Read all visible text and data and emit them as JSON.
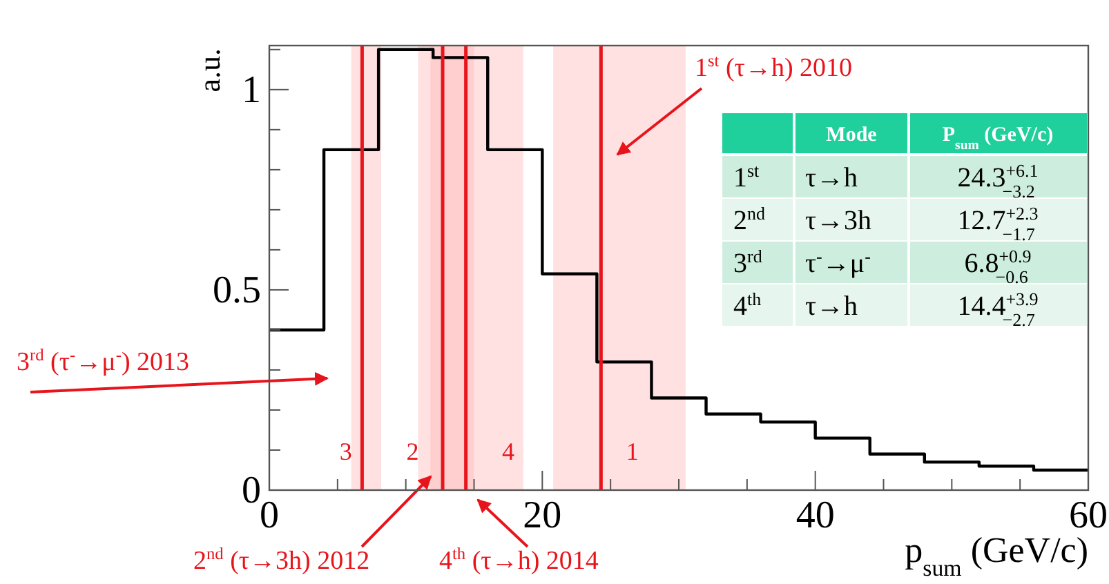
{
  "chart_data": {
    "type": "histogram",
    "xlabel": "p$_{sum}$ (GeV/c)",
    "ylabel": "a.u.",
    "color": "#000000",
    "bins": [
      0,
      4,
      8,
      12,
      16,
      20,
      24,
      28,
      32,
      36,
      40,
      44,
      48,
      52,
      56,
      60
    ],
    "values": [
      0.4,
      0.85,
      1.1,
      1.08,
      0.85,
      0.54,
      0.32,
      0.23,
      0.19,
      0.17,
      0.13,
      0.09,
      0.07,
      0.06,
      0.05
    ],
    "xlim": [
      0,
      60
    ],
    "ylim": [
      0,
      1.11
    ],
    "xticks": [
      0,
      {
        "value": 5,
        "label": null
      },
      {
        "value": 10,
        "label": null
      },
      {
        "value": 15,
        "label": null
      },
      20,
      {
        "value": 25,
        "label": null
      },
      {
        "value": 30,
        "label": null
      },
      {
        "value": 35,
        "label": null
      },
      40,
      {
        "value": 45,
        "label": null
      },
      {
        "value": 50,
        "label": null
      },
      {
        "value": 55,
        "label": null
      },
      60
    ],
    "yticks": [
      0,
      {
        "value": 0.1,
        "label": null
      },
      {
        "value": 0.2,
        "label": null
      },
      {
        "value": 0.3,
        "label": null
      },
      {
        "value": 0.4,
        "label": null
      },
      0.5,
      {
        "value": 0.6,
        "label": null
      },
      {
        "value": 0.7,
        "label": null
      },
      {
        "value": 0.8,
        "label": null
      },
      {
        "value": 0.9,
        "label": null
      },
      1,
      {
        "value": 1.1,
        "label": null
      }
    ],
    "ref_lines": [
      {
        "axis": "x",
        "value": 24.3,
        "label": "1$^{st}$ (τ→h) 2010",
        "color": "#e8141c"
      },
      {
        "axis": "x",
        "value": 12.7,
        "label": "2$^{nd}$ (τ→3h) 2012",
        "color": "#e8141c"
      },
      {
        "axis": "x",
        "value": 6.8,
        "label": "3$^{rd}$ (τ$^{-}$→μ$^{-}$) 2013",
        "color": "#e8141c"
      },
      {
        "axis": "x",
        "value": 14.4,
        "label": "4$^{th}$ (τ→h) 2014",
        "color": "#e8141c"
      }
    ],
    "bands": [
      {
        "axis": "x",
        "from": 20.8,
        "to": 30.5,
        "label": "1",
        "color": "#ffb3b3"
      },
      {
        "axis": "x",
        "from": 10.9,
        "to": 15.0,
        "label": "2",
        "color": "#ffb3b3"
      },
      {
        "axis": "x",
        "from": 6.0,
        "to": 8.2,
        "label": "3",
        "color": "#ffb3b3"
      },
      {
        "axis": "x",
        "from": 11.8,
        "to": 18.6,
        "label": "4",
        "color": "#ffb3b3"
      }
    ],
    "annotations": [
      "Mode",
      "P$_{sum}$ (GeV/c)",
      "1$^{st}$",
      "τ→h",
      "24.3$^{+6.1}$$_{−3.2}$",
      "2$^{nd}$",
      "τ→3h",
      "12.7$^{+2.3}$$_{−1.7}$",
      "3$^{rd}$",
      "τ$^{-}$→μ$^{-}$",
      "6.8$^{+0.9}$$_{−0.6}$",
      "4$^{th}$",
      "τ→h",
      "14.4$^{+3.9}$$_{−2.7}$"
    ],
    "grid": false
  }
}
